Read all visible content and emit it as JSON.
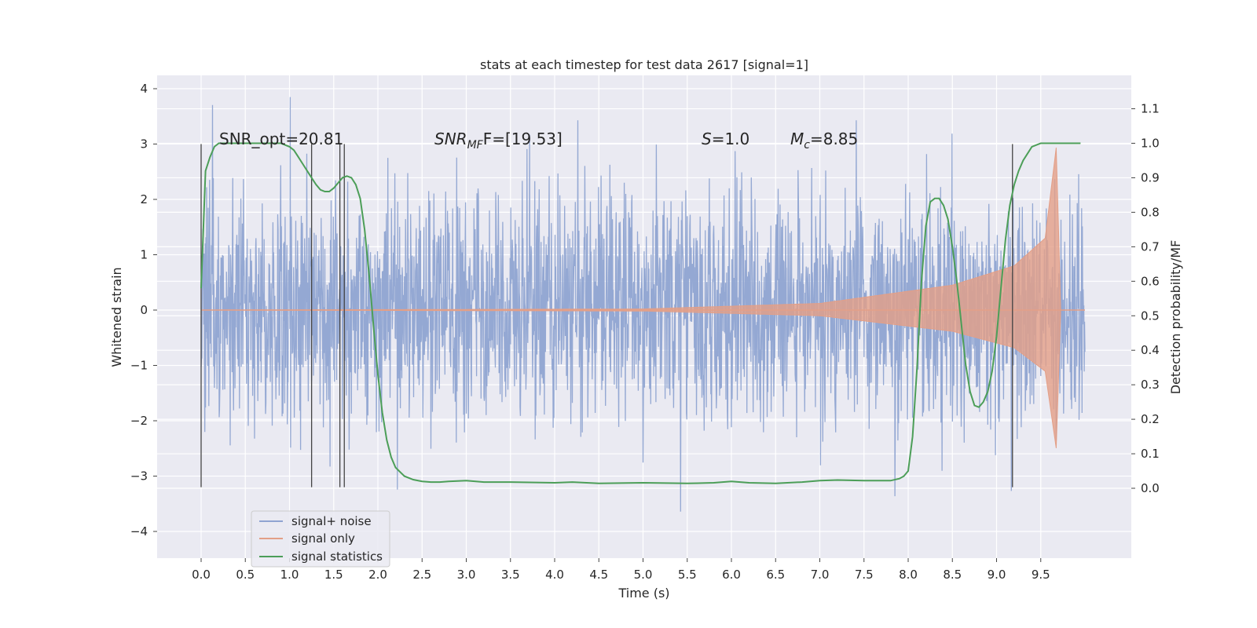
{
  "chart_data": {
    "type": "line",
    "title": "stats at each timestep for test data 2617 [signal=1]",
    "xlabel": "Time (s)",
    "ylabel_left": "Whitened strain",
    "ylabel_right": "Detection probability/MF",
    "xlim": [
      -0.5,
      10.5
    ],
    "ylim_left": [
      -4.4,
      4.2
    ],
    "ylim_right": [
      -0.2,
      1.18
    ],
    "x_ticks": [
      "0.0",
      "0.5",
      "1.0",
      "1.5",
      "2.0",
      "2.5",
      "3.0",
      "3.5",
      "4.0",
      "4.5",
      "5.0",
      "5.5",
      "6.0",
      "6.5",
      "7.0",
      "7.5",
      "8.0",
      "8.5",
      "9.0",
      "9.5"
    ],
    "y_left_ticks": [
      "4",
      "3",
      "2",
      "1",
      "0",
      "−1",
      "−2",
      "−3",
      "−4"
    ],
    "y_right_ticks": [
      "1.1",
      "1.0",
      "0.9",
      "0.8",
      "0.7",
      "0.6",
      "0.5",
      "0.4",
      "0.3",
      "0.2",
      "0.1",
      "0.0"
    ],
    "grid": true,
    "background": "#EAEAF2",
    "annotations": {
      "snr_opt": "SNR_opt=20.81",
      "snr_mf_base": "SNR",
      "snr_mf_sub": "MF",
      "snr_mf_rest": "F=[19.53]",
      "s_base": "S",
      "s_rest": "=1.0",
      "mc_base": "M",
      "mc_sub": "c",
      "mc_rest": "=8.85"
    },
    "vertical_markers_s": [
      0.0,
      1.25,
      1.57,
      1.62,
      9.18
    ],
    "legend": {
      "placement": "lower-left",
      "entries": [
        "signal+ noise",
        "signal only",
        "signal statistics"
      ]
    },
    "series": [
      {
        "name": "signal+ noise",
        "axis": "left",
        "color": "#8FA4D1",
        "x_range": [
          0.0,
          10.0
        ],
        "typical_envelope": [
          -1.6,
          1.6
        ],
        "peak_range": [
          -4.05,
          3.85
        ]
      },
      {
        "name": "signal only",
        "axis": "left",
        "color": "#E39F87",
        "description_points": [
          [
            0.0,
            0.0
          ],
          [
            5.0,
            0.02
          ],
          [
            7.0,
            0.12
          ],
          [
            8.5,
            0.45
          ],
          [
            9.2,
            0.8
          ],
          [
            9.55,
            1.3
          ],
          [
            9.68,
            3.0
          ],
          [
            9.72,
            0.0
          ],
          [
            10.0,
            0.0
          ]
        ]
      },
      {
        "name": "signal statistics",
        "axis": "right",
        "color": "#4C9E58",
        "x": [
          0.0,
          0.05,
          0.1,
          0.15,
          0.2,
          0.3,
          0.4,
          0.5,
          0.6,
          0.7,
          0.8,
          0.9,
          1.0,
          1.05,
          1.1,
          1.15,
          1.2,
          1.25,
          1.3,
          1.35,
          1.4,
          1.45,
          1.5,
          1.55,
          1.6,
          1.65,
          1.7,
          1.75,
          1.8,
          1.85,
          1.9,
          1.95,
          2.0,
          2.05,
          2.1,
          2.15,
          2.2,
          2.3,
          2.4,
          2.5,
          2.6,
          2.7,
          2.8,
          3.0,
          3.2,
          3.5,
          4.0,
          4.2,
          4.5,
          5.0,
          5.5,
          5.8,
          6.0,
          6.2,
          6.5,
          6.8,
          7.0,
          7.2,
          7.5,
          7.8,
          7.9,
          7.95,
          8.0,
          8.05,
          8.1,
          8.15,
          8.2,
          8.25,
          8.3,
          8.35,
          8.4,
          8.45,
          8.5,
          8.55,
          8.6,
          8.65,
          8.7,
          8.75,
          8.8,
          8.85,
          8.9,
          8.95,
          9.0,
          9.05,
          9.1,
          9.15,
          9.2,
          9.25,
          9.3,
          9.35,
          9.4,
          9.5,
          9.6,
          9.7,
          9.8,
          9.9,
          9.95
        ],
        "y": [
          0.58,
          0.92,
          0.96,
          0.99,
          1.0,
          1.0,
          1.0,
          1.0,
          1.0,
          1.0,
          1.0,
          1.0,
          0.99,
          0.98,
          0.96,
          0.94,
          0.92,
          0.9,
          0.88,
          0.865,
          0.86,
          0.86,
          0.87,
          0.885,
          0.9,
          0.905,
          0.9,
          0.88,
          0.84,
          0.75,
          0.62,
          0.47,
          0.33,
          0.22,
          0.14,
          0.09,
          0.06,
          0.035,
          0.025,
          0.02,
          0.018,
          0.018,
          0.02,
          0.022,
          0.018,
          0.018,
          0.016,
          0.018,
          0.014,
          0.016,
          0.014,
          0.016,
          0.02,
          0.016,
          0.014,
          0.018,
          0.022,
          0.024,
          0.022,
          0.022,
          0.028,
          0.035,
          0.05,
          0.15,
          0.35,
          0.6,
          0.76,
          0.83,
          0.84,
          0.84,
          0.82,
          0.78,
          0.7,
          0.6,
          0.48,
          0.36,
          0.28,
          0.24,
          0.235,
          0.25,
          0.28,
          0.34,
          0.44,
          0.58,
          0.72,
          0.82,
          0.88,
          0.92,
          0.95,
          0.97,
          0.99,
          1.0,
          1.0,
          1.0,
          1.0,
          1.0,
          1.0
        ]
      }
    ]
  }
}
